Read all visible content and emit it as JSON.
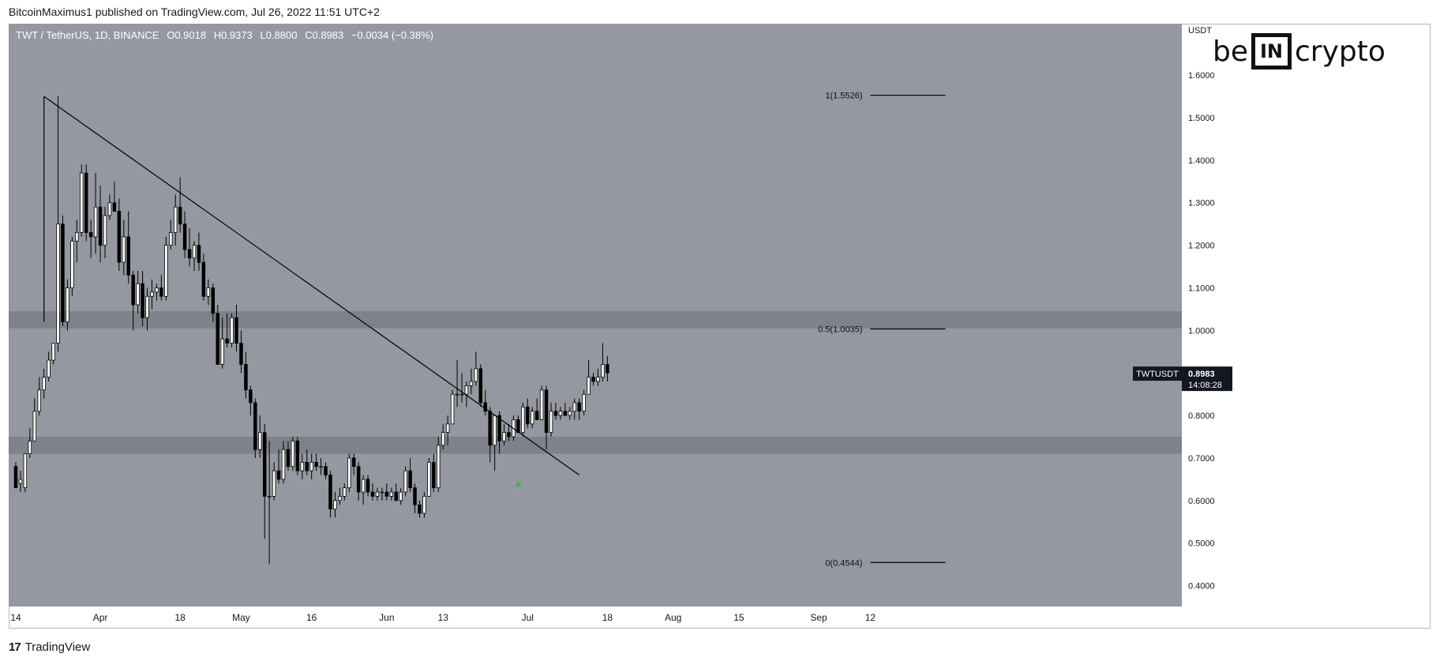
{
  "header": {
    "published_text": "BitcoinMaximus1 published on TradingView.com, Jul 26, 2022 11:51 UTC+2"
  },
  "legend": {
    "symbol": "TWT / TetherUS, 1D, BINANCE",
    "o_label": "O",
    "o_value": "0.9018",
    "h_label": "H",
    "h_value": "0.9373",
    "l_label": "L",
    "l_value": "0.8800",
    "c_label": "C",
    "c_value": "0.8983",
    "change": "−0.0034 (−0.38%)"
  },
  "logo": {
    "left": "be",
    "box": "IN",
    "right": "crypto"
  },
  "footer": {
    "brand": "TradingView",
    "mark": "17"
  },
  "colors": {
    "background": "#9598a1",
    "zone": "#7b7e86",
    "candle_up": "#ffffff",
    "candle_down": "#000000",
    "line": "#000000",
    "green_arrow": "#4caf50"
  },
  "chart_data": {
    "type": "candlestick",
    "title": "",
    "y_axis_unit": "USDT",
    "ylim": [
      0.35,
      1.72
    ],
    "y_ticks": [
      "1.6000",
      "1.5000",
      "1.4000",
      "1.3000",
      "1.2000",
      "1.1000",
      "1.0000",
      "0.9000",
      "0.8000",
      "0.7000",
      "0.6000",
      "0.5000",
      "0.4000"
    ],
    "x_tick_labels": [
      {
        "label": "14",
        "date": "2022-03-14"
      },
      {
        "label": "Apr",
        "date": "2022-04-01"
      },
      {
        "label": "18",
        "date": "2022-04-18"
      },
      {
        "label": "May",
        "date": "2022-05-01"
      },
      {
        "label": "16",
        "date": "2022-05-16"
      },
      {
        "label": "Jun",
        "date": "2022-06-01"
      },
      {
        "label": "13",
        "date": "2022-06-13"
      },
      {
        "label": "Jul",
        "date": "2022-07-01"
      },
      {
        "label": "18",
        "date": "2022-07-18"
      },
      {
        "label": "Aug",
        "date": "2022-08-01"
      },
      {
        "label": "15",
        "date": "2022-08-15"
      },
      {
        "label": "Sep",
        "date": "2022-09-01"
      },
      {
        "label": "12",
        "date": "2022-09-12"
      }
    ],
    "price_label": {
      "symbol": "TWTUSDT",
      "price": "0.8983",
      "countdown": "14:08:28",
      "value": 0.8983
    },
    "zones": [
      {
        "from": 1.005,
        "to": 1.045
      },
      {
        "from": 0.71,
        "to": 0.75
      }
    ],
    "fib_levels": [
      {
        "label": "1(1.5526)",
        "value": 1.5526
      },
      {
        "label": "0.5(1.0035)",
        "value": 1.0035
      },
      {
        "label": "0(0.4544)",
        "value": 0.4544
      }
    ],
    "fib_start_date": "2022-09-12",
    "fib_end_date": "2022-09-28",
    "trendline": {
      "from": {
        "date": "2022-03-20",
        "value": 1.55
      },
      "to": {
        "date": "2022-07-12",
        "value": 0.66
      }
    },
    "vertical_line": {
      "date": "2022-03-20",
      "from": 1.55,
      "to": 1.02
    },
    "marker": {
      "date": "2022-06-29",
      "value": 0.64,
      "shape": "up-arrow"
    },
    "start_date": "2022-03-14",
    "candles": [
      {
        "o": 0.68,
        "h": 0.69,
        "l": 0.64,
        "c": 0.63
      },
      {
        "o": 0.64,
        "h": 0.67,
        "l": 0.62,
        "c": 0.65
      },
      {
        "o": 0.63,
        "h": 0.71,
        "l": 0.62,
        "c": 0.71
      },
      {
        "o": 0.71,
        "h": 0.77,
        "l": 0.7,
        "c": 0.74
      },
      {
        "o": 0.74,
        "h": 0.84,
        "l": 0.74,
        "c": 0.81
      },
      {
        "o": 0.81,
        "h": 0.89,
        "l": 0.8,
        "c": 0.86
      },
      {
        "o": 0.86,
        "h": 0.91,
        "l": 0.84,
        "c": 0.89
      },
      {
        "o": 0.89,
        "h": 0.95,
        "l": 0.88,
        "c": 0.93
      },
      {
        "o": 0.93,
        "h": 0.97,
        "l": 0.92,
        "c": 0.97
      },
      {
        "o": 0.97,
        "h": 1.55,
        "l": 0.95,
        "c": 1.25
      },
      {
        "o": 1.25,
        "h": 1.27,
        "l": 1.01,
        "c": 1.02
      },
      {
        "o": 1.02,
        "h": 1.12,
        "l": 1.0,
        "c": 1.1
      },
      {
        "o": 1.1,
        "h": 1.22,
        "l": 1.08,
        "c": 1.21
      },
      {
        "o": 1.21,
        "h": 1.26,
        "l": 1.16,
        "c": 1.23
      },
      {
        "o": 1.23,
        "h": 1.39,
        "l": 1.22,
        "c": 1.37
      },
      {
        "o": 1.37,
        "h": 1.39,
        "l": 1.21,
        "c": 1.23
      },
      {
        "o": 1.23,
        "h": 1.26,
        "l": 1.17,
        "c": 1.22
      },
      {
        "o": 1.22,
        "h": 1.37,
        "l": 1.18,
        "c": 1.29
      },
      {
        "o": 1.29,
        "h": 1.34,
        "l": 1.16,
        "c": 1.2
      },
      {
        "o": 1.2,
        "h": 1.29,
        "l": 1.17,
        "c": 1.27
      },
      {
        "o": 1.27,
        "h": 1.32,
        "l": 1.26,
        "c": 1.3
      },
      {
        "o": 1.3,
        "h": 1.35,
        "l": 1.28,
        "c": 1.28
      },
      {
        "o": 1.28,
        "h": 1.31,
        "l": 1.14,
        "c": 1.16
      },
      {
        "o": 1.16,
        "h": 1.26,
        "l": 1.13,
        "c": 1.22
      },
      {
        "o": 1.22,
        "h": 1.28,
        "l": 1.11,
        "c": 1.13
      },
      {
        "o": 1.13,
        "h": 1.14,
        "l": 1.0,
        "c": 1.06
      },
      {
        "o": 1.06,
        "h": 1.14,
        "l": 1.04,
        "c": 1.11
      },
      {
        "o": 1.11,
        "h": 1.14,
        "l": 1.01,
        "c": 1.03
      },
      {
        "o": 1.03,
        "h": 1.1,
        "l": 1.0,
        "c": 1.08
      },
      {
        "o": 1.08,
        "h": 1.12,
        "l": 1.05,
        "c": 1.09
      },
      {
        "o": 1.09,
        "h": 1.11,
        "l": 1.07,
        "c": 1.1
      },
      {
        "o": 1.1,
        "h": 1.13,
        "l": 1.07,
        "c": 1.08
      },
      {
        "o": 1.08,
        "h": 1.22,
        "l": 1.07,
        "c": 1.2
      },
      {
        "o": 1.2,
        "h": 1.26,
        "l": 1.19,
        "c": 1.23
      },
      {
        "o": 1.23,
        "h": 1.32,
        "l": 1.2,
        "c": 1.29
      },
      {
        "o": 1.29,
        "h": 1.36,
        "l": 1.23,
        "c": 1.25
      },
      {
        "o": 1.25,
        "h": 1.28,
        "l": 1.17,
        "c": 1.19
      },
      {
        "o": 1.19,
        "h": 1.24,
        "l": 1.15,
        "c": 1.17
      },
      {
        "o": 1.17,
        "h": 1.21,
        "l": 1.14,
        "c": 1.2
      },
      {
        "o": 1.2,
        "h": 1.23,
        "l": 1.14,
        "c": 1.16
      },
      {
        "o": 1.16,
        "h": 1.18,
        "l": 1.07,
        "c": 1.08
      },
      {
        "o": 1.08,
        "h": 1.12,
        "l": 1.06,
        "c": 1.1
      },
      {
        "o": 1.1,
        "h": 1.11,
        "l": 1.02,
        "c": 1.04
      },
      {
        "o": 1.04,
        "h": 1.06,
        "l": 0.92,
        "c": 0.92
      },
      {
        "o": 0.92,
        "h": 1.03,
        "l": 0.91,
        "c": 0.98
      },
      {
        "o": 0.98,
        "h": 1.04,
        "l": 0.96,
        "c": 0.97
      },
      {
        "o": 0.97,
        "h": 1.04,
        "l": 0.96,
        "c": 1.03
      },
      {
        "o": 1.03,
        "h": 1.06,
        "l": 0.95,
        "c": 0.97
      },
      {
        "o": 0.97,
        "h": 1.0,
        "l": 0.9,
        "c": 0.92
      },
      {
        "o": 0.92,
        "h": 0.95,
        "l": 0.84,
        "c": 0.86
      },
      {
        "o": 0.86,
        "h": 0.87,
        "l": 0.8,
        "c": 0.83
      },
      {
        "o": 0.83,
        "h": 0.84,
        "l": 0.7,
        "c": 0.72
      },
      {
        "o": 0.72,
        "h": 0.8,
        "l": 0.7,
        "c": 0.76
      },
      {
        "o": 0.76,
        "h": 0.78,
        "l": 0.51,
        "c": 0.61
      },
      {
        "o": 0.61,
        "h": 0.74,
        "l": 0.45,
        "c": 0.61
      },
      {
        "o": 0.61,
        "h": 0.69,
        "l": 0.6,
        "c": 0.67
      },
      {
        "o": 0.67,
        "h": 0.72,
        "l": 0.64,
        "c": 0.65
      },
      {
        "o": 0.65,
        "h": 0.74,
        "l": 0.64,
        "c": 0.72
      },
      {
        "o": 0.72,
        "h": 0.74,
        "l": 0.67,
        "c": 0.68
      },
      {
        "o": 0.68,
        "h": 0.75,
        "l": 0.67,
        "c": 0.74
      },
      {
        "o": 0.74,
        "h": 0.75,
        "l": 0.66,
        "c": 0.67
      },
      {
        "o": 0.67,
        "h": 0.71,
        "l": 0.65,
        "c": 0.69
      },
      {
        "o": 0.69,
        "h": 0.72,
        "l": 0.66,
        "c": 0.67
      },
      {
        "o": 0.67,
        "h": 0.71,
        "l": 0.65,
        "c": 0.69
      },
      {
        "o": 0.69,
        "h": 0.71,
        "l": 0.67,
        "c": 0.68
      },
      {
        "o": 0.68,
        "h": 0.7,
        "l": 0.66,
        "c": 0.68
      },
      {
        "o": 0.68,
        "h": 0.69,
        "l": 0.65,
        "c": 0.66
      },
      {
        "o": 0.66,
        "h": 0.67,
        "l": 0.56,
        "c": 0.58
      },
      {
        "o": 0.58,
        "h": 0.62,
        "l": 0.56,
        "c": 0.6
      },
      {
        "o": 0.6,
        "h": 0.63,
        "l": 0.59,
        "c": 0.61
      },
      {
        "o": 0.61,
        "h": 0.64,
        "l": 0.6,
        "c": 0.63
      },
      {
        "o": 0.63,
        "h": 0.71,
        "l": 0.62,
        "c": 0.7
      },
      {
        "o": 0.7,
        "h": 0.71,
        "l": 0.66,
        "c": 0.68
      },
      {
        "o": 0.68,
        "h": 0.69,
        "l": 0.6,
        "c": 0.62
      },
      {
        "o": 0.62,
        "h": 0.66,
        "l": 0.59,
        "c": 0.65
      },
      {
        "o": 0.65,
        "h": 0.66,
        "l": 0.61,
        "c": 0.62
      },
      {
        "o": 0.62,
        "h": 0.64,
        "l": 0.6,
        "c": 0.61
      },
      {
        "o": 0.61,
        "h": 0.63,
        "l": 0.6,
        "c": 0.62
      },
      {
        "o": 0.62,
        "h": 0.63,
        "l": 0.6,
        "c": 0.62
      },
      {
        "o": 0.62,
        "h": 0.64,
        "l": 0.6,
        "c": 0.61
      },
      {
        "o": 0.61,
        "h": 0.63,
        "l": 0.6,
        "c": 0.62
      },
      {
        "o": 0.62,
        "h": 0.64,
        "l": 0.6,
        "c": 0.6
      },
      {
        "o": 0.6,
        "h": 0.63,
        "l": 0.59,
        "c": 0.62
      },
      {
        "o": 0.62,
        "h": 0.68,
        "l": 0.61,
        "c": 0.67
      },
      {
        "o": 0.67,
        "h": 0.7,
        "l": 0.62,
        "c": 0.63
      },
      {
        "o": 0.63,
        "h": 0.64,
        "l": 0.57,
        "c": 0.59
      },
      {
        "o": 0.59,
        "h": 0.6,
        "l": 0.56,
        "c": 0.57
      },
      {
        "o": 0.57,
        "h": 0.62,
        "l": 0.56,
        "c": 0.61
      },
      {
        "o": 0.61,
        "h": 0.7,
        "l": 0.61,
        "c": 0.69
      },
      {
        "o": 0.69,
        "h": 0.71,
        "l": 0.62,
        "c": 0.63
      },
      {
        "o": 0.63,
        "h": 0.75,
        "l": 0.62,
        "c": 0.73
      },
      {
        "o": 0.73,
        "h": 0.78,
        "l": 0.72,
        "c": 0.76
      },
      {
        "o": 0.76,
        "h": 0.8,
        "l": 0.73,
        "c": 0.78
      },
      {
        "o": 0.78,
        "h": 0.86,
        "l": 0.78,
        "c": 0.85
      },
      {
        "o": 0.85,
        "h": 0.93,
        "l": 0.82,
        "c": 0.85
      },
      {
        "o": 0.85,
        "h": 0.9,
        "l": 0.83,
        "c": 0.85
      },
      {
        "o": 0.85,
        "h": 0.88,
        "l": 0.82,
        "c": 0.87
      },
      {
        "o": 0.87,
        "h": 0.91,
        "l": 0.85,
        "c": 0.88
      },
      {
        "o": 0.88,
        "h": 0.95,
        "l": 0.87,
        "c": 0.91
      },
      {
        "o": 0.91,
        "h": 0.92,
        "l": 0.82,
        "c": 0.83
      },
      {
        "o": 0.83,
        "h": 0.86,
        "l": 0.8,
        "c": 0.81
      },
      {
        "o": 0.81,
        "h": 0.82,
        "l": 0.69,
        "c": 0.73
      },
      {
        "o": 0.73,
        "h": 0.8,
        "l": 0.67,
        "c": 0.8
      },
      {
        "o": 0.8,
        "h": 0.81,
        "l": 0.71,
        "c": 0.74
      },
      {
        "o": 0.74,
        "h": 0.78,
        "l": 0.73,
        "c": 0.76
      },
      {
        "o": 0.76,
        "h": 0.78,
        "l": 0.74,
        "c": 0.75
      },
      {
        "o": 0.75,
        "h": 0.8,
        "l": 0.74,
        "c": 0.79
      },
      {
        "o": 0.79,
        "h": 0.8,
        "l": 0.76,
        "c": 0.76
      },
      {
        "o": 0.76,
        "h": 0.83,
        "l": 0.75,
        "c": 0.82
      },
      {
        "o": 0.82,
        "h": 0.84,
        "l": 0.77,
        "c": 0.78
      },
      {
        "o": 0.78,
        "h": 0.82,
        "l": 0.77,
        "c": 0.81
      },
      {
        "o": 0.81,
        "h": 0.84,
        "l": 0.79,
        "c": 0.79
      },
      {
        "o": 0.79,
        "h": 0.87,
        "l": 0.79,
        "c": 0.86
      },
      {
        "o": 0.86,
        "h": 0.87,
        "l": 0.72,
        "c": 0.76
      },
      {
        "o": 0.76,
        "h": 0.83,
        "l": 0.75,
        "c": 0.81
      },
      {
        "o": 0.81,
        "h": 0.83,
        "l": 0.79,
        "c": 0.8
      },
      {
        "o": 0.8,
        "h": 0.82,
        "l": 0.79,
        "c": 0.81
      },
      {
        "o": 0.81,
        "h": 0.83,
        "l": 0.8,
        "c": 0.8
      },
      {
        "o": 0.8,
        "h": 0.82,
        "l": 0.79,
        "c": 0.81
      },
      {
        "o": 0.81,
        "h": 0.84,
        "l": 0.79,
        "c": 0.83
      },
      {
        "o": 0.83,
        "h": 0.84,
        "l": 0.79,
        "c": 0.81
      },
      {
        "o": 0.81,
        "h": 0.86,
        "l": 0.8,
        "c": 0.85
      },
      {
        "o": 0.85,
        "h": 0.93,
        "l": 0.85,
        "c": 0.89
      },
      {
        "o": 0.89,
        "h": 0.9,
        "l": 0.87,
        "c": 0.88
      },
      {
        "o": 0.88,
        "h": 0.91,
        "l": 0.87,
        "c": 0.89
      },
      {
        "o": 0.89,
        "h": 0.97,
        "l": 0.88,
        "c": 0.92
      },
      {
        "o": 0.92,
        "h": 0.94,
        "l": 0.88,
        "c": 0.9
      }
    ]
  }
}
